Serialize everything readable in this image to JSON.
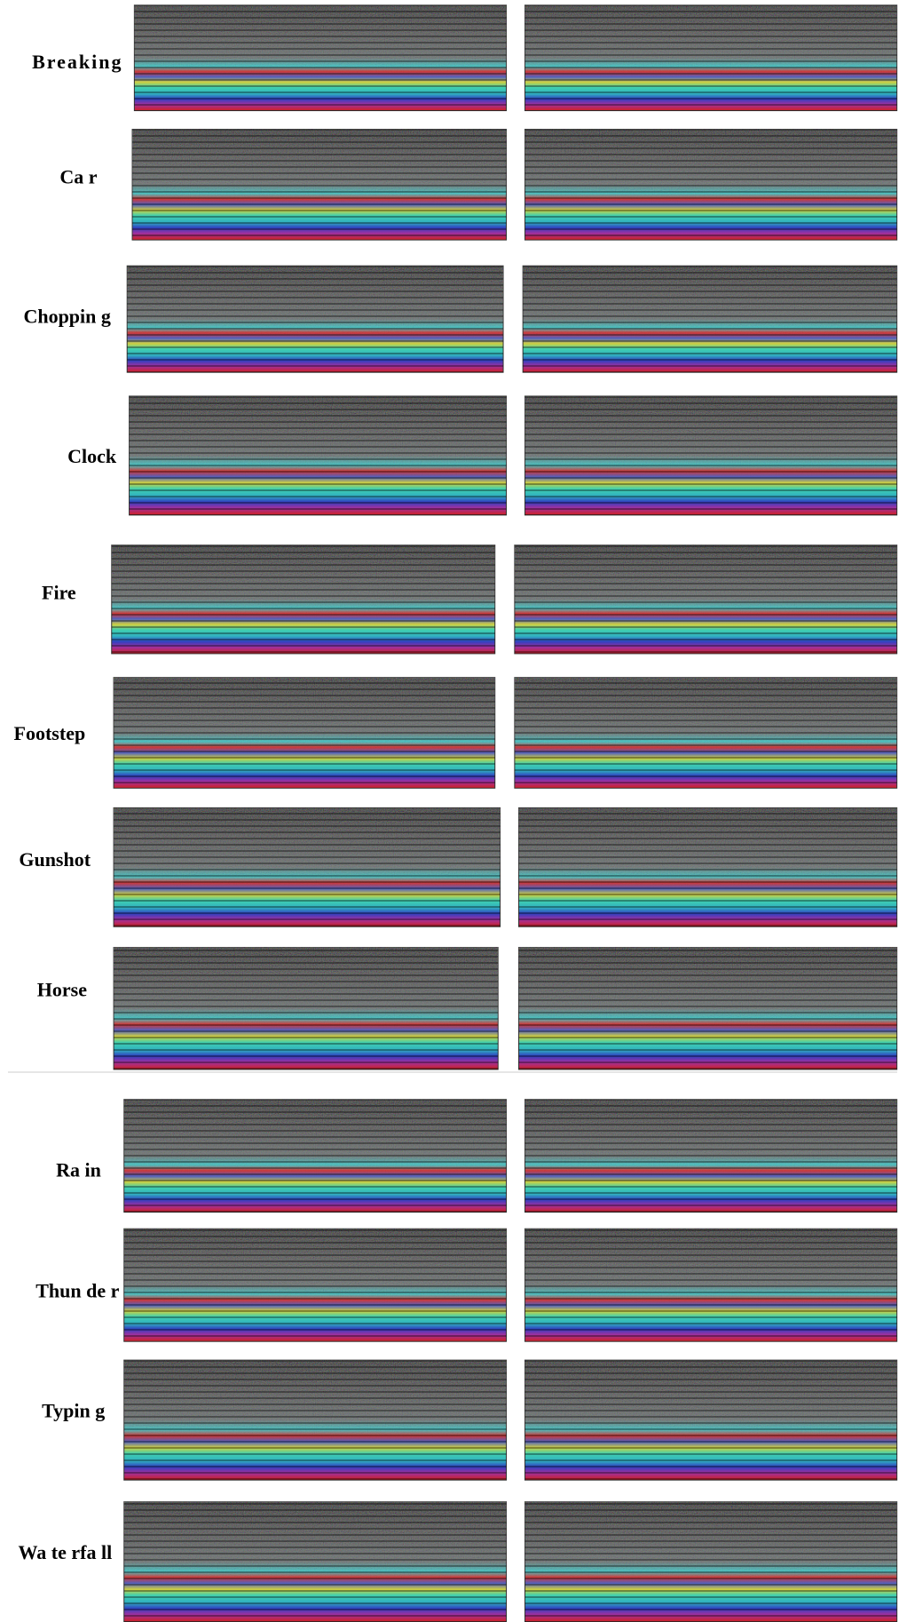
{
  "rows": [
    {
      "label": "Breaking"
    },
    {
      "label": "Ca r"
    },
    {
      "label": "Choppin g"
    },
    {
      "label": "Clock"
    },
    {
      "label": "Fire"
    },
    {
      "label": "Footstep"
    },
    {
      "label": "Gunshot"
    },
    {
      "label": "Horse"
    },
    {
      "label": "Ra in"
    },
    {
      "label": "Thun de r"
    },
    {
      "label": "Typin g"
    },
    {
      "label": "Wa te rfa ll"
    }
  ]
}
